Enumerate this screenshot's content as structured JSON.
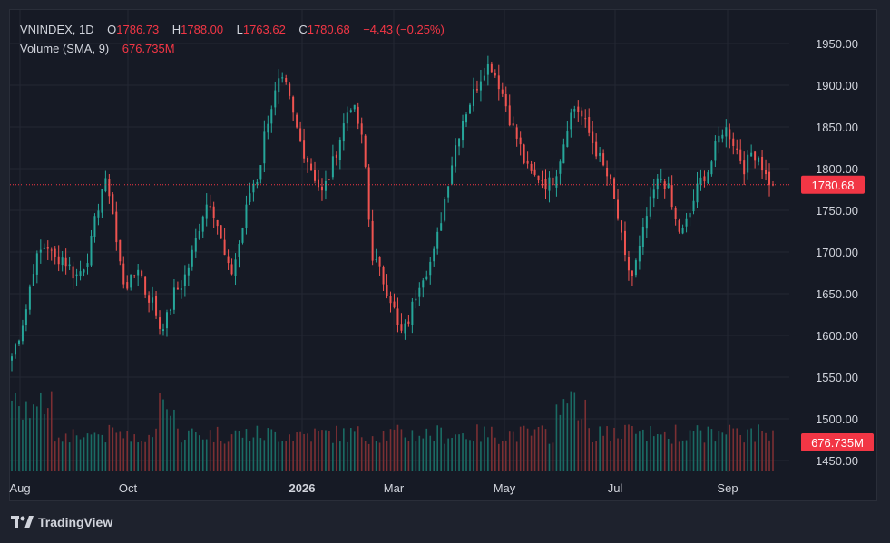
{
  "header": {
    "symbol": "VNINDEX, 1D",
    "o_label": "O",
    "open": "1786.73",
    "h_label": "H",
    "high": "1788.00",
    "l_label": "L",
    "low": "1763.62",
    "c_label": "C",
    "close": "1780.68",
    "change": "−4.43 (−0.25%)",
    "volume_label": "Volume (SMA, 9)",
    "volume_value": "676.735M"
  },
  "price_badge": "1780.68",
  "volume_badge": "676.735M",
  "brand": {
    "name": "TradingView",
    "icon": "tradingview-logo-icon"
  },
  "colors": {
    "up": "#26a69a",
    "down": "#ef5350",
    "up_volume": "#1a6b64",
    "down_volume": "#7b2f33",
    "badge": "#f23645",
    "grid": "#242833",
    "text": "#d1d4dc",
    "background": "#161a25"
  },
  "chart_data": {
    "type": "candlestick",
    "y_ticks": [
      "1950.00",
      "1900.00",
      "1850.00",
      "1800.00",
      "1750.00",
      "1700.00",
      "1650.00",
      "1600.00",
      "1550.00",
      "1500.00",
      "1450.00"
    ],
    "ylim": [
      1450,
      1950
    ],
    "x_labels": [
      "Aug",
      "Oct",
      "2026",
      "Mar",
      "May",
      "Jul",
      "Sep"
    ],
    "last_price": 1780.68,
    "last_volume": "676.735M",
    "grid": true,
    "price_path": [
      {
        "month": "Aug",
        "points": [
          1575,
          1600,
          1630,
          1680,
          1700,
          1710,
          1690,
          1695,
          1685,
          1670,
          1680
        ]
      },
      {
        "month": "Oct",
        "points": [
          1700,
          1745,
          1785,
          1770,
          1700,
          1660,
          1665,
          1685,
          1650,
          1640,
          1610,
          1620,
          1650,
          1660,
          1680,
          1710,
          1745,
          1765,
          1740,
          1700,
          1670,
          1700,
          1740,
          1780,
          1790
        ]
      },
      {
        "month": "2026",
        "points": [
          1850,
          1880,
          1905,
          1895,
          1860,
          1830,
          1810,
          1790,
          1770,
          1790,
          1820,
          1850,
          1880,
          1860,
          1820,
          1700,
          1680,
          1660,
          1640,
          1600,
          1610,
          1640,
          1670,
          1680,
          1700,
          1745,
          1790,
          1830,
          1860,
          1880,
          1900,
          1920,
          1925,
          1905,
          1880,
          1850,
          1830,
          1800,
          1790,
          1790,
          1780,
          1790,
          1820,
          1860,
          1875,
          1860,
          1840,
          1820,
          1800,
          1780,
          1740,
          1690,
          1670,
          1700,
          1740,
          1770,
          1790,
          1780,
          1740,
          1720,
          1740,
          1770,
          1790,
          1800,
          1830,
          1850,
          1840,
          1820,
          1800,
          1820,
          1815,
          1790,
          1780
        ]
      }
    ]
  }
}
